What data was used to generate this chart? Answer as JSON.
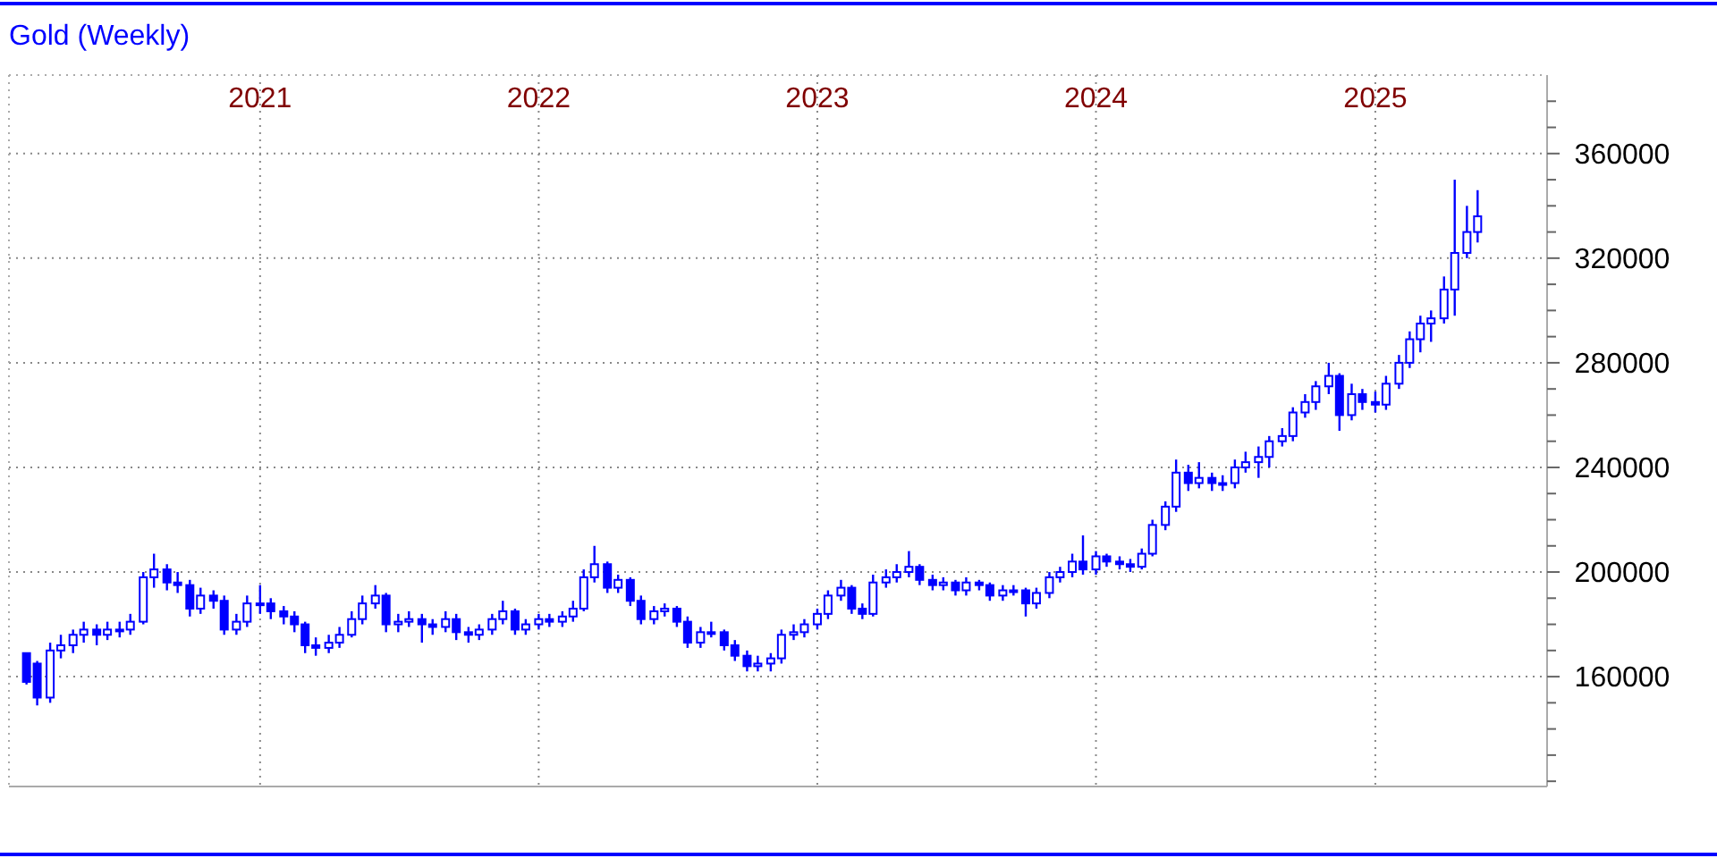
{
  "chart_data": {
    "type": "candlestick",
    "title": "Gold (Weekly)",
    "color": "#0000ff",
    "grid": true,
    "xlim": [
      "2020-02-07",
      "2025-08-14"
    ],
    "xticks": [
      {
        "value": "2021-01-01",
        "label": "2021"
      },
      {
        "value": "2022-01-01",
        "label": "2022"
      },
      {
        "value": "2023-01-01",
        "label": "2023"
      },
      {
        "value": "2024-01-01",
        "label": "2024"
      },
      {
        "value": "2025-01-01",
        "label": "2025"
      }
    ],
    "ylim": [
      118000,
      390000
    ],
    "yticks": [
      {
        "value": 120000,
        "label": null
      },
      {
        "value": 130000,
        "label": null
      },
      {
        "value": 140000,
        "label": null
      },
      {
        "value": 150000,
        "label": null
      },
      160000,
      {
        "value": 170000,
        "label": null
      },
      {
        "value": 180000,
        "label": null
      },
      {
        "value": 190000,
        "label": null
      },
      200000,
      {
        "value": 210000,
        "label": null
      },
      {
        "value": 220000,
        "label": null
      },
      {
        "value": 230000,
        "label": null
      },
      240000,
      {
        "value": 250000,
        "label": null
      },
      {
        "value": 260000,
        "label": null
      },
      {
        "value": 270000,
        "label": null
      },
      280000,
      {
        "value": 290000,
        "label": null
      },
      {
        "value": 300000,
        "label": null
      },
      {
        "value": 310000,
        "label": null
      },
      320000,
      {
        "value": 330000,
        "label": null
      },
      {
        "value": 340000,
        "label": null
      },
      {
        "value": 350000,
        "label": null
      },
      360000,
      {
        "value": 370000,
        "label": null
      },
      {
        "value": 380000,
        "label": null
      }
    ],
    "x": [
      "2020-03-01",
      "2020-03-15",
      "2020-04-01",
      "2020-04-15",
      "2020-05-01",
      "2020-05-15",
      "2020-06-01",
      "2020-06-15",
      "2020-07-01",
      "2020-07-15",
      "2020-08-01",
      "2020-08-15",
      "2020-09-01",
      "2020-09-15",
      "2020-10-01",
      "2020-10-15",
      "2020-11-01",
      "2020-11-15",
      "2020-12-01",
      "2020-12-15",
      "2021-01-01",
      "2021-01-15",
      "2021-02-01",
      "2021-02-15",
      "2021-03-01",
      "2021-03-15",
      "2021-04-01",
      "2021-04-15",
      "2021-05-01",
      "2021-05-15",
      "2021-06-01",
      "2021-06-15",
      "2021-07-01",
      "2021-07-15",
      "2021-08-01",
      "2021-08-15",
      "2021-09-01",
      "2021-09-15",
      "2021-10-01",
      "2021-10-15",
      "2021-11-01",
      "2021-11-15",
      "2021-12-01",
      "2021-12-15",
      "2022-01-01",
      "2022-01-15",
      "2022-02-01",
      "2022-02-15",
      "2022-03-01",
      "2022-03-15",
      "2022-04-01",
      "2022-04-15",
      "2022-05-01",
      "2022-05-15",
      "2022-06-01",
      "2022-06-15",
      "2022-07-01",
      "2022-07-15",
      "2022-08-01",
      "2022-08-15",
      "2022-09-01",
      "2022-09-15",
      "2022-10-01",
      "2022-10-15",
      "2022-11-01",
      "2022-11-15",
      "2022-12-01",
      "2022-12-15",
      "2023-01-01",
      "2023-01-15",
      "2023-02-01",
      "2023-02-15",
      "2023-03-01",
      "2023-03-15",
      "2023-04-01",
      "2023-04-15",
      "2023-05-01",
      "2023-05-15",
      "2023-06-01",
      "2023-06-15",
      "2023-07-01",
      "2023-07-15",
      "2023-08-01",
      "2023-08-15",
      "2023-09-01",
      "2023-09-15",
      "2023-10-01",
      "2023-10-15",
      "2023-11-01",
      "2023-11-15",
      "2023-12-01",
      "2023-12-15",
      "2024-01-01",
      "2024-01-15",
      "2024-02-01",
      "2024-02-15",
      "2024-03-01",
      "2024-03-15",
      "2024-04-01",
      "2024-04-15",
      "2024-05-01",
      "2024-05-15",
      "2024-06-01",
      "2024-06-15",
      "2024-07-01",
      "2024-07-15",
      "2024-08-01",
      "2024-08-15",
      "2024-09-01",
      "2024-09-15",
      "2024-10-01",
      "2024-10-15",
      "2024-11-01",
      "2024-11-15",
      "2024-12-01",
      "2024-12-15",
      "2025-01-01",
      "2025-01-15",
      "2025-02-01",
      "2025-02-15",
      "2025-03-01",
      "2025-03-15",
      "2025-04-01",
      "2025-04-15",
      "2025-05-01",
      "2025-05-15"
    ],
    "ohlc": [
      [
        169000,
        169000,
        157000,
        158000
      ],
      [
        165000,
        166000,
        149000,
        152000
      ],
      [
        152000,
        173000,
        150000,
        170000
      ],
      [
        170000,
        176000,
        167000,
        172000
      ],
      [
        172000,
        178000,
        169000,
        176000
      ],
      [
        176000,
        181000,
        173000,
        178000
      ],
      [
        178000,
        180000,
        172000,
        176000
      ],
      [
        176000,
        181000,
        174000,
        178000
      ],
      [
        178000,
        181000,
        175000,
        178000
      ],
      [
        178000,
        184000,
        176000,
        181000
      ],
      [
        181000,
        200000,
        180000,
        198000
      ],
      [
        198000,
        207000,
        194000,
        201000
      ],
      [
        201000,
        203000,
        193000,
        196000
      ],
      [
        196000,
        200000,
        192000,
        195000
      ],
      [
        195000,
        197000,
        183000,
        186000
      ],
      [
        186000,
        194000,
        184000,
        191000
      ],
      [
        191000,
        193000,
        186000,
        189000
      ],
      [
        189000,
        191000,
        176000,
        178000
      ],
      [
        178000,
        184000,
        176000,
        181000
      ],
      [
        181000,
        191000,
        179000,
        188000
      ],
      [
        188000,
        195000,
        184000,
        188000
      ],
      [
        188000,
        190000,
        182000,
        185000
      ],
      [
        185000,
        187000,
        180000,
        183000
      ],
      [
        183000,
        185000,
        177000,
        180000
      ],
      [
        180000,
        181000,
        169000,
        172000
      ],
      [
        172000,
        175000,
        168000,
        171000
      ],
      [
        171000,
        176000,
        169000,
        173000
      ],
      [
        173000,
        179000,
        171000,
        176000
      ],
      [
        176000,
        185000,
        175000,
        182000
      ],
      [
        182000,
        191000,
        180000,
        188000
      ],
      [
        188000,
        195000,
        186000,
        191000
      ],
      [
        191000,
        192000,
        177000,
        180000
      ],
      [
        180000,
        184000,
        177000,
        181000
      ],
      [
        181000,
        185000,
        179000,
        182000
      ],
      [
        182000,
        184000,
        173000,
        180000
      ],
      [
        180000,
        182000,
        176000,
        179000
      ],
      [
        179000,
        185000,
        177000,
        182000
      ],
      [
        182000,
        184000,
        174000,
        177000
      ],
      [
        177000,
        179000,
        173000,
        176000
      ],
      [
        176000,
        180000,
        174000,
        178000
      ],
      [
        178000,
        184000,
        176000,
        182000
      ],
      [
        182000,
        189000,
        180000,
        185000
      ],
      [
        185000,
        186000,
        176000,
        178000
      ],
      [
        178000,
        182000,
        176000,
        180000
      ],
      [
        180000,
        184000,
        178000,
        182000
      ],
      [
        182000,
        184000,
        179000,
        181000
      ],
      [
        181000,
        185000,
        179000,
        183000
      ],
      [
        183000,
        189000,
        181000,
        186000
      ],
      [
        186000,
        201000,
        185000,
        198000
      ],
      [
        198000,
        210000,
        196000,
        203000
      ],
      [
        203000,
        204000,
        192000,
        194000
      ],
      [
        194000,
        199000,
        192000,
        197000
      ],
      [
        197000,
        198000,
        187000,
        189000
      ],
      [
        189000,
        191000,
        180000,
        182000
      ],
      [
        182000,
        187000,
        180000,
        185000
      ],
      [
        185000,
        188000,
        183000,
        186000
      ],
      [
        186000,
        187000,
        179000,
        181000
      ],
      [
        181000,
        183000,
        171000,
        173000
      ],
      [
        173000,
        179000,
        171000,
        177000
      ],
      [
        177000,
        181000,
        175000,
        177000
      ],
      [
        177000,
        178000,
        170000,
        172000
      ],
      [
        172000,
        174000,
        166000,
        168000
      ],
      [
        168000,
        170000,
        162000,
        164000
      ],
      [
        164000,
        168000,
        162000,
        165000
      ],
      [
        165000,
        169000,
        162000,
        167000
      ],
      [
        167000,
        178000,
        165000,
        176000
      ],
      [
        176000,
        180000,
        174000,
        177000
      ],
      [
        177000,
        182000,
        175000,
        180000
      ],
      [
        180000,
        186000,
        178000,
        184000
      ],
      [
        184000,
        193000,
        182000,
        191000
      ],
      [
        191000,
        197000,
        189000,
        194000
      ],
      [
        194000,
        195000,
        184000,
        186000
      ],
      [
        186000,
        188000,
        182000,
        184000
      ],
      [
        184000,
        199000,
        183000,
        196000
      ],
      [
        196000,
        201000,
        194000,
        198000
      ],
      [
        198000,
        203000,
        196000,
        200000
      ],
      [
        200000,
        208000,
        198000,
        202000
      ],
      [
        202000,
        203000,
        195000,
        197000
      ],
      [
        197000,
        199000,
        193000,
        195000
      ],
      [
        195000,
        198000,
        193000,
        196000
      ],
      [
        196000,
        197000,
        191000,
        193000
      ],
      [
        193000,
        198000,
        191000,
        196000
      ],
      [
        196000,
        197000,
        193000,
        195000
      ],
      [
        195000,
        196000,
        189000,
        191000
      ],
      [
        191000,
        195000,
        189000,
        193000
      ],
      [
        193000,
        195000,
        191000,
        193000
      ],
      [
        193000,
        194000,
        183000,
        188000
      ],
      [
        188000,
        194000,
        186000,
        192000
      ],
      [
        192000,
        200000,
        190000,
        198000
      ],
      [
        198000,
        202000,
        196000,
        200000
      ],
      [
        200000,
        207000,
        198000,
        204000
      ],
      [
        204000,
        214000,
        199000,
        201000
      ],
      [
        201000,
        208000,
        199000,
        206000
      ],
      [
        206000,
        207000,
        202000,
        204000
      ],
      [
        204000,
        206000,
        201000,
        203000
      ],
      [
        203000,
        205000,
        200000,
        202000
      ],
      [
        202000,
        209000,
        201000,
        207000
      ],
      [
        207000,
        220000,
        206000,
        218000
      ],
      [
        218000,
        227000,
        216000,
        225000
      ],
      [
        225000,
        243000,
        223000,
        238000
      ],
      [
        238000,
        241000,
        231000,
        234000
      ],
      [
        234000,
        242000,
        232000,
        236000
      ],
      [
        236000,
        238000,
        231000,
        234000
      ],
      [
        234000,
        237000,
        231000,
        234000
      ],
      [
        234000,
        243000,
        232000,
        240000
      ],
      [
        240000,
        246000,
        238000,
        242000
      ],
      [
        242000,
        248000,
        236000,
        244000
      ],
      [
        244000,
        252000,
        240000,
        250000
      ],
      [
        250000,
        255000,
        248000,
        252000
      ],
      [
        252000,
        263000,
        250000,
        261000
      ],
      [
        261000,
        268000,
        259000,
        265000
      ],
      [
        265000,
        273000,
        262000,
        271000
      ],
      [
        271000,
        280000,
        268000,
        275000
      ],
      [
        275000,
        276000,
        254000,
        260000
      ],
      [
        260000,
        272000,
        258000,
        268000
      ],
      [
        268000,
        270000,
        262000,
        265000
      ],
      [
        265000,
        269000,
        261000,
        264000
      ],
      [
        264000,
        275000,
        262000,
        272000
      ],
      [
        272000,
        283000,
        270000,
        280000
      ],
      [
        280000,
        292000,
        278000,
        289000
      ],
      [
        289000,
        298000,
        284000,
        295000
      ],
      [
        295000,
        300000,
        288000,
        297000
      ],
      [
        297000,
        313000,
        295000,
        308000
      ],
      [
        308000,
        350000,
        298000,
        322000
      ],
      [
        322000,
        340000,
        320000,
        330000
      ],
      [
        330000,
        346000,
        326000,
        336000
      ]
    ]
  }
}
